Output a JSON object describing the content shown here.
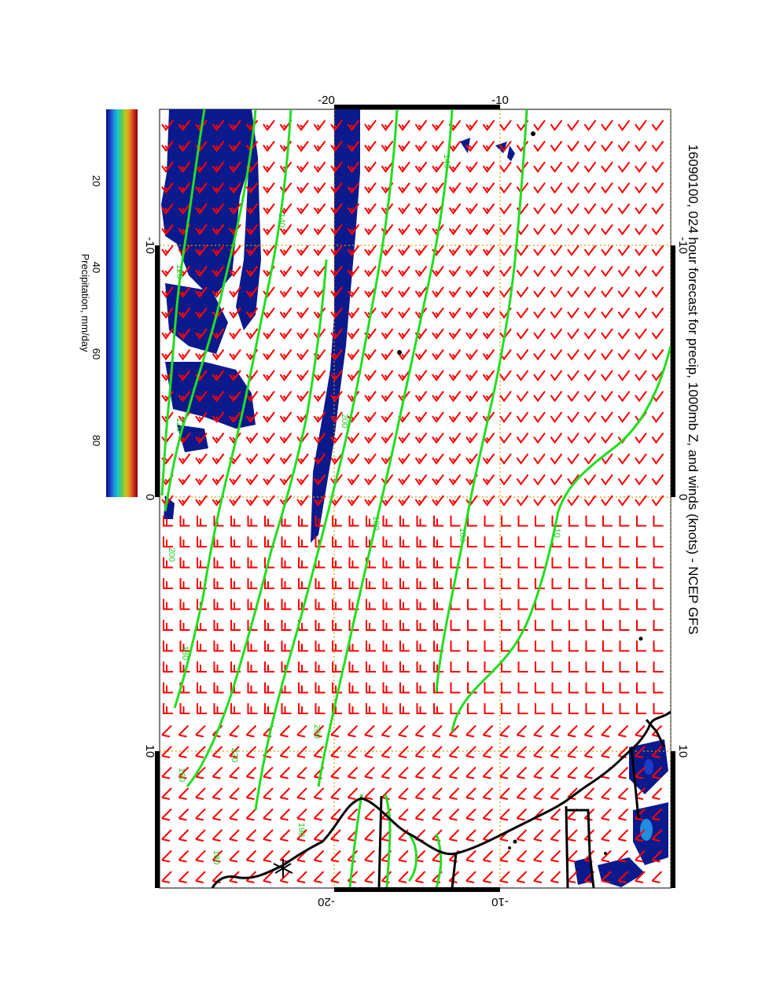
{
  "title": "16090100, 024 hour forecast for precip, 1000mb Z, and winds (knots) - NCEP GFS",
  "top_axis_ticks": [
    "-20",
    "-10"
  ],
  "bottom_axis_ticks": [
    "-20",
    "-10"
  ],
  "left_axis_ticks": [
    "-10",
    "0",
    "10"
  ],
  "right_axis_ticks": [
    "-10",
    "0",
    "10"
  ],
  "colorbar": {
    "label": "Precipitation, mm/day",
    "ticks": [
      "20",
      "40",
      "60",
      "80"
    ],
    "colors": [
      "#0a0a7a",
      "#1a3cc8",
      "#1f8ee0",
      "#19c8c8",
      "#5ac85a",
      "#c8c81e",
      "#e08c1e",
      "#d2281e",
      "#780a0a"
    ]
  },
  "contour_labels": [
    "140",
    "120",
    "200",
    "180",
    "160",
    "140",
    "120",
    "200",
    "180",
    "160",
    "110",
    "200",
    "220",
    "190",
    "180"
  ],
  "colors": {
    "wind_barbs": "#ff0000",
    "contours": "#22dd22",
    "precip": "#0a1a8c",
    "coastline": "#000000",
    "grid": "#d4a000"
  }
}
